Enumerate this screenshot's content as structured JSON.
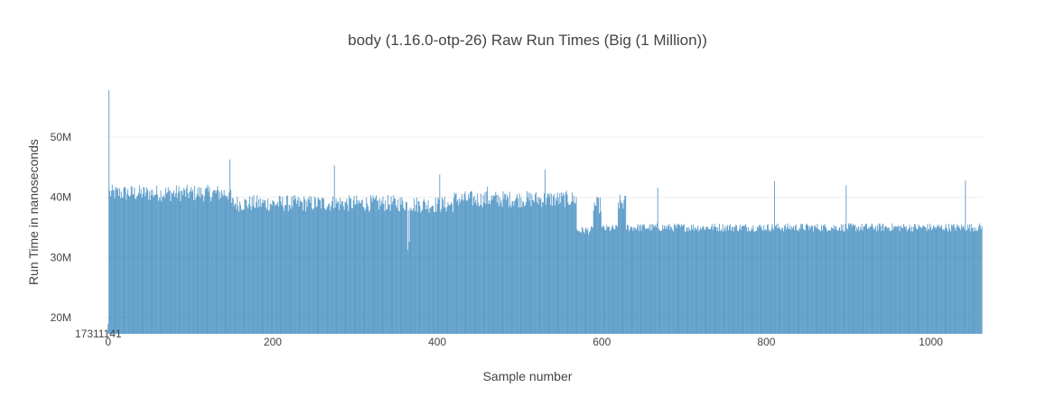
{
  "chart_data": {
    "type": "bar",
    "title": "body (1.16.0-otp-26) Raw Run Times (Big (1 Million))",
    "xlabel": "Sample number",
    "ylabel": "Run Time in nanoseconds",
    "xlim": [
      -3,
      1063
    ],
    "ylim": [
      17311141,
      57800000
    ],
    "y_base_label": "17311141",
    "x_ticks": [
      {
        "value": 0,
        "label": "0"
      },
      {
        "value": 200,
        "label": "200"
      },
      {
        "value": 400,
        "label": "400"
      },
      {
        "value": 600,
        "label": "600"
      },
      {
        "value": 800,
        "label": "800"
      },
      {
        "value": 1000,
        "label": "1000"
      }
    ],
    "y_ticks": [
      {
        "value": 20000000,
        "label": "20M"
      },
      {
        "value": 30000000,
        "label": "30M"
      },
      {
        "value": 40000000,
        "label": "40M"
      },
      {
        "value": 50000000,
        "label": "50M"
      }
    ],
    "grid": true,
    "legend": "none",
    "series": [
      {
        "color": "#1f77b4",
        "sample_count": 1063,
        "values_note_levels": [
          {
            "x_start": 0,
            "x_end": 1,
            "value": 19000000
          },
          {
            "x_start": 1,
            "x_end": 2,
            "value": 57800000
          },
          {
            "x_start": 2,
            "x_end": 150,
            "value": 40700000
          },
          {
            "x_start": 150,
            "x_end": 370,
            "value": 39000000
          },
          {
            "x_start": 370,
            "x_end": 420,
            "value": 38800000
          },
          {
            "x_start": 420,
            "x_end": 570,
            "value": 39700000
          },
          {
            "x_start": 570,
            "x_end": 590,
            "value": 34500000
          },
          {
            "x_start": 590,
            "x_end": 600,
            "value": 38700000
          },
          {
            "x_start": 600,
            "x_end": 620,
            "value": 34800000
          },
          {
            "x_start": 620,
            "x_end": 630,
            "value": 39100000
          },
          {
            "x_start": 630,
            "x_end": 1063,
            "value": 35000000
          }
        ],
        "spikes": [
          {
            "x": 1,
            "value": 57800000
          },
          {
            "x": 148,
            "value": 46300000
          },
          {
            "x": 275,
            "value": 45300000
          },
          {
            "x": 403,
            "value": 43800000
          },
          {
            "x": 461,
            "value": 41800000
          },
          {
            "x": 531,
            "value": 44600000
          },
          {
            "x": 668,
            "value": 41600000
          },
          {
            "x": 810,
            "value": 42700000
          },
          {
            "x": 897,
            "value": 42000000
          },
          {
            "x": 1042,
            "value": 42800000
          }
        ],
        "dips": [
          {
            "x": 364,
            "value": 31300000
          },
          {
            "x": 366,
            "value": 32600000
          }
        ]
      }
    ]
  }
}
